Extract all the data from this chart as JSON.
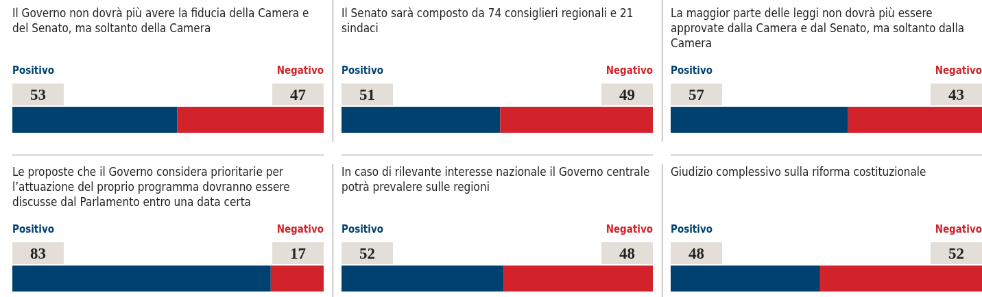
{
  "chart_data": [
    {
      "type": "bar",
      "orientation": "horizontal",
      "stacked": true,
      "title": "Il Governo non dovrà più avere la fiducia della Camera e del Senato, ma soltanto della Camera",
      "categories": [
        null
      ],
      "tick_labels": false,
      "data_labels": true,
      "series": [
        {
          "name": "Positivo",
          "color": "#004170",
          "values": [
            53
          ]
        },
        {
          "name": "Negativo",
          "color": "#d2232a",
          "values": [
            47
          ]
        }
      ]
    },
    {
      "type": "bar",
      "orientation": "horizontal",
      "stacked": true,
      "title": "Il Senato sarà composto da 74 consiglieri regionali e 21 sindaci",
      "categories": [
        null
      ],
      "tick_labels": false,
      "data_labels": true,
      "series": [
        {
          "name": "Positivo",
          "color": "#004170",
          "values": [
            51
          ]
        },
        {
          "name": "Negativo",
          "color": "#d2232a",
          "values": [
            49
          ]
        }
      ]
    },
    {
      "type": "bar",
      "orientation": "horizontal",
      "stacked": true,
      "title": "La maggior parte delle leggi non dovrà più essere approvate dalla Camera e dal Senato, ma soltanto dalla Camera",
      "categories": [
        null
      ],
      "tick_labels": false,
      "data_labels": true,
      "series": [
        {
          "name": "Positivo",
          "color": "#004170",
          "values": [
            57
          ]
        },
        {
          "name": "Negativo",
          "color": "#d2232a",
          "values": [
            43
          ]
        }
      ]
    },
    {
      "type": "bar",
      "orientation": "horizontal",
      "stacked": true,
      "title": "Le proposte che il Governo considera prioritarie per l’attuazione del proprio programma dovranno essere discusse dal Parlamento entro una data certa",
      "categories": [
        null
      ],
      "tick_labels": false,
      "data_labels": true,
      "series": [
        {
          "name": "Positivo",
          "color": "#004170",
          "values": [
            83
          ]
        },
        {
          "name": "Negativo",
          "color": "#d2232a",
          "values": [
            17
          ]
        }
      ]
    },
    {
      "type": "bar",
      "orientation": "horizontal",
      "stacked": true,
      "title": "In caso di rilevante interesse nazionale il Governo centrale potrà prevalere sulle regioni",
      "categories": [
        null
      ],
      "tick_labels": false,
      "data_labels": true,
      "series": [
        {
          "name": "Positivo",
          "color": "#004170",
          "values": [
            52
          ]
        },
        {
          "name": "Negativo",
          "color": "#d2232a",
          "values": [
            48
          ]
        }
      ]
    },
    {
      "type": "bar",
      "orientation": "horizontal",
      "stacked": true,
      "title": "Giudizio complessivo sulla riforma costituzionale",
      "categories": [
        null
      ],
      "tick_labels": false,
      "data_labels": true,
      "series": [
        {
          "name": "Positivo",
          "color": "#004170",
          "values": [
            48
          ]
        },
        {
          "name": "Negativo",
          "color": "#d2232a",
          "values": [
            52
          ]
        }
      ]
    }
  ]
}
